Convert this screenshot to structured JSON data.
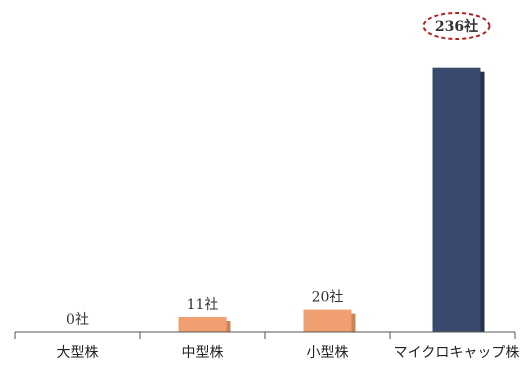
{
  "chart_data": {
    "type": "bar",
    "categories": [
      "大型株",
      "中型株",
      "小型株",
      "マイクロキャップ株"
    ],
    "values": [
      0,
      11,
      20,
      236
    ],
    "data_labels": [
      "0社",
      "11社",
      "20社",
      "236社"
    ],
    "highlight_index": 3,
    "ylim": [
      0,
      250
    ],
    "grid": false,
    "legend": "none",
    "title": "",
    "xlabel": "",
    "ylabel": ""
  },
  "colors": {
    "bar_default": "#F0A070",
    "bar_default_shadow": "#C9855A",
    "bar_highlight": "#3A4A6E",
    "bar_highlight_shadow": "#242F4A",
    "highlight_ellipse": "#B22222",
    "axis": "#555555"
  }
}
